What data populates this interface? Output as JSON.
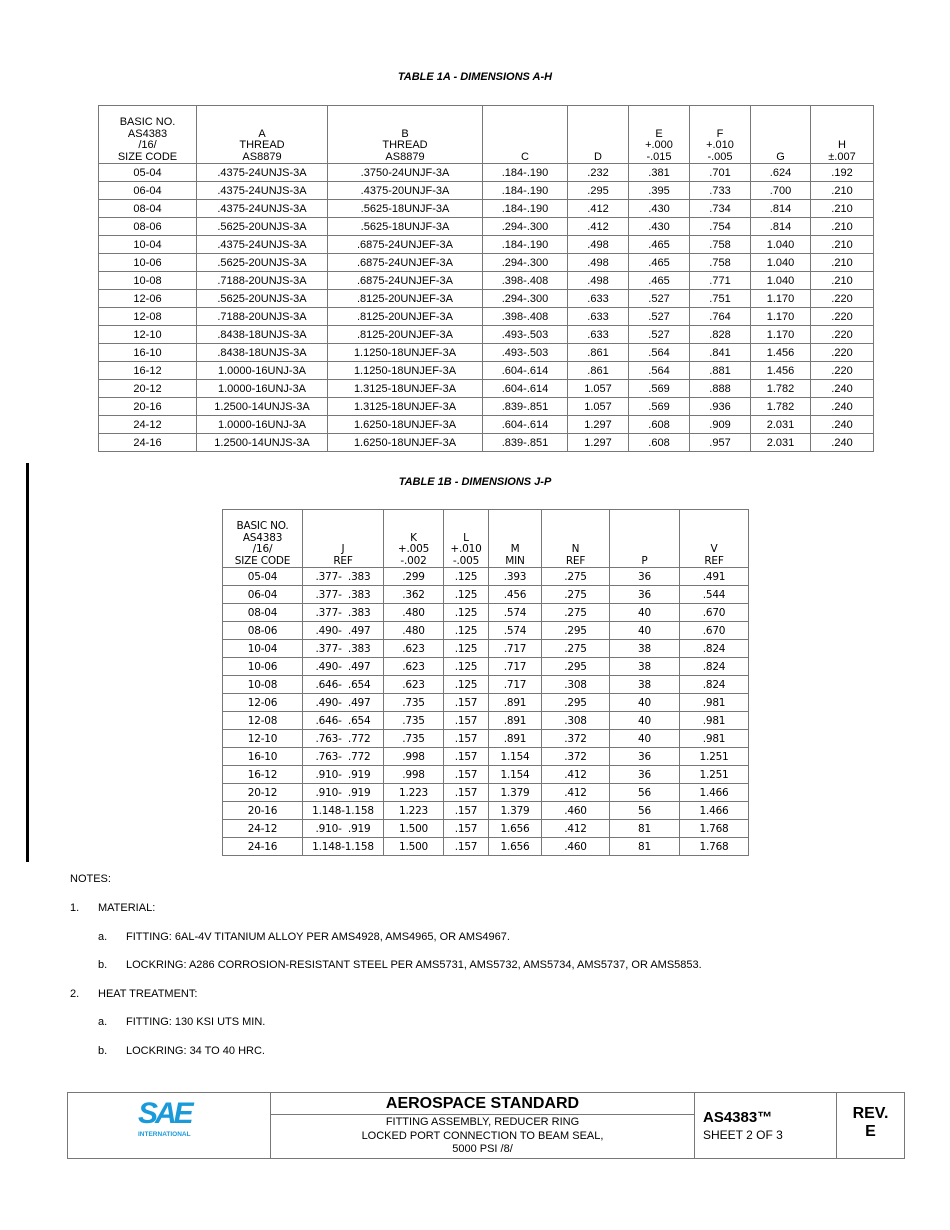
{
  "table1a": {
    "title": "TABLE 1A - DIMENSIONS A-H",
    "headers": [
      [
        "BASIC NO.",
        "AS4383",
        "/16/",
        "SIZE CODE"
      ],
      [
        "A",
        "THREAD",
        "AS8879"
      ],
      [
        "B",
        "THREAD",
        "AS8879"
      ],
      [
        "C"
      ],
      [
        "D"
      ],
      [
        "E",
        "+.000",
        "-.015"
      ],
      [
        "F",
        "+.010",
        "-.005"
      ],
      [
        "G"
      ],
      [
        "H",
        "±.007"
      ]
    ],
    "rows": [
      [
        "05-04",
        ".4375-24UNJS-3A",
        ".3750-24UNJF-3A",
        ".184-.190",
        ".232",
        ".381",
        ".701",
        ".624",
        ".192"
      ],
      [
        "06-04",
        ".4375-24UNJS-3A",
        ".4375-20UNJF-3A",
        ".184-.190",
        ".295",
        ".395",
        ".733",
        ".700",
        ".210"
      ],
      [
        "08-04",
        ".4375-24UNJS-3A",
        ".5625-18UNJF-3A",
        ".184-.190",
        ".412",
        ".430",
        ".734",
        ".814",
        ".210"
      ],
      [
        "08-06",
        ".5625-20UNJS-3A",
        ".5625-18UNJF-3A",
        ".294-.300",
        ".412",
        ".430",
        ".754",
        ".814",
        ".210"
      ],
      [
        "10-04",
        ".4375-24UNJS-3A",
        ".6875-24UNJEF-3A",
        ".184-.190",
        ".498",
        ".465",
        ".758",
        "1.040",
        ".210"
      ],
      [
        "10-06",
        ".5625-20UNJS-3A",
        ".6875-24UNJEF-3A",
        ".294-.300",
        ".498",
        ".465",
        ".758",
        "1.040",
        ".210"
      ],
      [
        "10-08",
        ".7188-20UNJS-3A",
        ".6875-24UNJEF-3A",
        ".398-.408",
        ".498",
        ".465",
        ".771",
        "1.040",
        ".210"
      ],
      [
        "12-06",
        ".5625-20UNJS-3A",
        ".8125-20UNJEF-3A",
        ".294-.300",
        ".633",
        ".527",
        ".751",
        "1.170",
        ".220"
      ],
      [
        "12-08",
        ".7188-20UNJS-3A",
        ".8125-20UNJEF-3A",
        ".398-.408",
        ".633",
        ".527",
        ".764",
        "1.170",
        ".220"
      ],
      [
        "12-10",
        ".8438-18UNJS-3A",
        ".8125-20UNJEF-3A",
        ".493-.503",
        ".633",
        ".527",
        ".828",
        "1.170",
        ".220"
      ],
      [
        "16-10",
        ".8438-18UNJS-3A",
        "1.1250-18UNJEF-3A",
        ".493-.503",
        ".861",
        ".564",
        ".841",
        "1.456",
        ".220"
      ],
      [
        "16-12",
        "1.0000-16UNJ-3A",
        "1.1250-18UNJEF-3A",
        ".604-.614",
        ".861",
        ".564",
        ".881",
        "1.456",
        ".220"
      ],
      [
        "20-12",
        "1.0000-16UNJ-3A",
        "1.3125-18UNJEF-3A",
        ".604-.614",
        "1.057",
        ".569",
        ".888",
        "1.782",
        ".240"
      ],
      [
        "20-16",
        "1.2500-14UNJS-3A",
        "1.3125-18UNJEF-3A",
        ".839-.851",
        "1.057",
        ".569",
        ".936",
        "1.782",
        ".240"
      ],
      [
        "24-12",
        "1.0000-16UNJ-3A",
        "1.6250-18UNJEF-3A",
        ".604-.614",
        "1.297",
        ".608",
        ".909",
        "2.031",
        ".240"
      ],
      [
        "24-16",
        "1.2500-14UNJS-3A",
        "1.6250-18UNJEF-3A",
        ".839-.851",
        "1.297",
        ".608",
        ".957",
        "2.031",
        ".240"
      ]
    ]
  },
  "table1b": {
    "title": "TABLE 1B - DIMENSIONS J-P",
    "headers": [
      [
        "BASIC NO.",
        "AS4383",
        "/16/",
        "SIZE CODE"
      ],
      [
        "J",
        "REF"
      ],
      [
        "K",
        "+.005",
        "-.002"
      ],
      [
        "L",
        "+.010",
        "-.005"
      ],
      [
        "M",
        "MIN"
      ],
      [
        "N",
        "REF"
      ],
      [
        "P"
      ],
      [
        "V",
        "REF"
      ]
    ],
    "rows": [
      [
        "05-04",
        ".377-  .383",
        ".299",
        ".125",
        ".393",
        ".275",
        "36",
        ".491"
      ],
      [
        "06-04",
        ".377-  .383",
        ".362",
        ".125",
        ".456",
        ".275",
        "36",
        ".544"
      ],
      [
        "08-04",
        ".377-  .383",
        ".480",
        ".125",
        ".574",
        ".275",
        "40",
        ".670"
      ],
      [
        "08-06",
        ".490-  .497",
        ".480",
        ".125",
        ".574",
        ".295",
        "40",
        ".670"
      ],
      [
        "10-04",
        ".377-  .383",
        ".623",
        ".125",
        ".717",
        ".275",
        "38",
        ".824"
      ],
      [
        "10-06",
        ".490-  .497",
        ".623",
        ".125",
        ".717",
        ".295",
        "38",
        ".824"
      ],
      [
        "10-08",
        ".646-  .654",
        ".623",
        ".125",
        ".717",
        ".308",
        "38",
        ".824"
      ],
      [
        "12-06",
        ".490-  .497",
        ".735",
        ".157",
        ".891",
        ".295",
        "40",
        ".981"
      ],
      [
        "12-08",
        ".646-  .654",
        ".735",
        ".157",
        ".891",
        ".308",
        "40",
        ".981"
      ],
      [
        "12-10",
        ".763-  .772",
        ".735",
        ".157",
        ".891",
        ".372",
        "40",
        ".981"
      ],
      [
        "16-10",
        ".763-  .772",
        ".998",
        ".157",
        "1.154",
        ".372",
        "36",
        "1.251"
      ],
      [
        "16-12",
        ".910-  .919",
        ".998",
        ".157",
        "1.154",
        ".412",
        "36",
        "1.251"
      ],
      [
        "20-12",
        ".910-  .919",
        "1.223",
        ".157",
        "1.379",
        ".412",
        "56",
        "1.466"
      ],
      [
        "20-16",
        "1.148-1.158",
        "1.223",
        ".157",
        "1.379",
        ".460",
        "56",
        "1.466"
      ],
      [
        "24-12",
        ".910-  .919",
        "1.500",
        ".157",
        "1.656",
        ".412",
        "81",
        "1.768"
      ],
      [
        "24-16",
        "1.148-1.158",
        "1.500",
        ".157",
        "1.656",
        ".460",
        "81",
        "1.768"
      ]
    ]
  },
  "notes": {
    "heading": "NOTES:",
    "items": [
      {
        "num": "1.",
        "text": "MATERIAL:",
        "sub": [
          {
            "num": "a.",
            "text": "FITTING: 6AL-4V TITANIUM ALLOY PER AMS4928, AMS4965, OR AMS4967."
          },
          {
            "num": "b.",
            "text": "LOCKRING: A286 CORROSION-RESISTANT STEEL PER AMS5731, AMS5732, AMS5734, AMS5737, OR AMS5853."
          }
        ]
      },
      {
        "num": "2.",
        "text": "HEAT TREATMENT:",
        "sub": [
          {
            "num": "a.",
            "text": "FITTING: 130 KSI UTS MIN."
          },
          {
            "num": "b.",
            "text": "LOCKRING: 34 TO 40 HRC."
          }
        ]
      }
    ]
  },
  "footer": {
    "logo_text": "SAE",
    "logo_subtext": "INTERNATIONAL",
    "logo_color": "#1a9ad9",
    "heading": "AEROSPACE STANDARD",
    "desc_line1": "FITTING ASSEMBLY, REDUCER RING",
    "desc_line2": "LOCKED PORT CONNECTION TO BEAM SEAL,",
    "desc_line3": "5000 PSI /8/",
    "doc_number": "AS4383™",
    "sheet": "SHEET 2 OF 3",
    "rev_label": "REV.",
    "rev_value": "E"
  }
}
